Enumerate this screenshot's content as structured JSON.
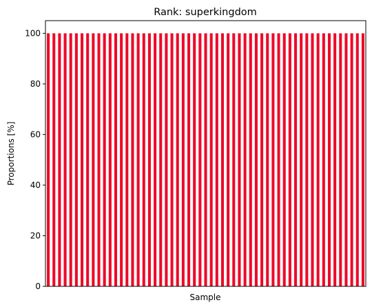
{
  "chart_data": {
    "type": "bar",
    "title": "Rank: superkingdom",
    "xlabel": "Sample",
    "ylabel": "Proportions [%]",
    "ylim": [
      0,
      105
    ],
    "yticks": [
      0,
      20,
      40,
      60,
      80,
      100
    ],
    "xtick_labels_visible": false,
    "bar_count": 57,
    "values": [
      100,
      100,
      100,
      100,
      100,
      100,
      100,
      100,
      100,
      100,
      100,
      100,
      100,
      100,
      100,
      100,
      100,
      100,
      100,
      100,
      100,
      100,
      100,
      100,
      100,
      100,
      100,
      100,
      100,
      100,
      100,
      100,
      100,
      100,
      100,
      100,
      100,
      100,
      100,
      100,
      100,
      100,
      100,
      100,
      100,
      100,
      100,
      100,
      100,
      100,
      100,
      100,
      100,
      100,
      100,
      100,
      100
    ],
    "bar_color": "#ee0a28",
    "grid": false,
    "legend": "none"
  }
}
